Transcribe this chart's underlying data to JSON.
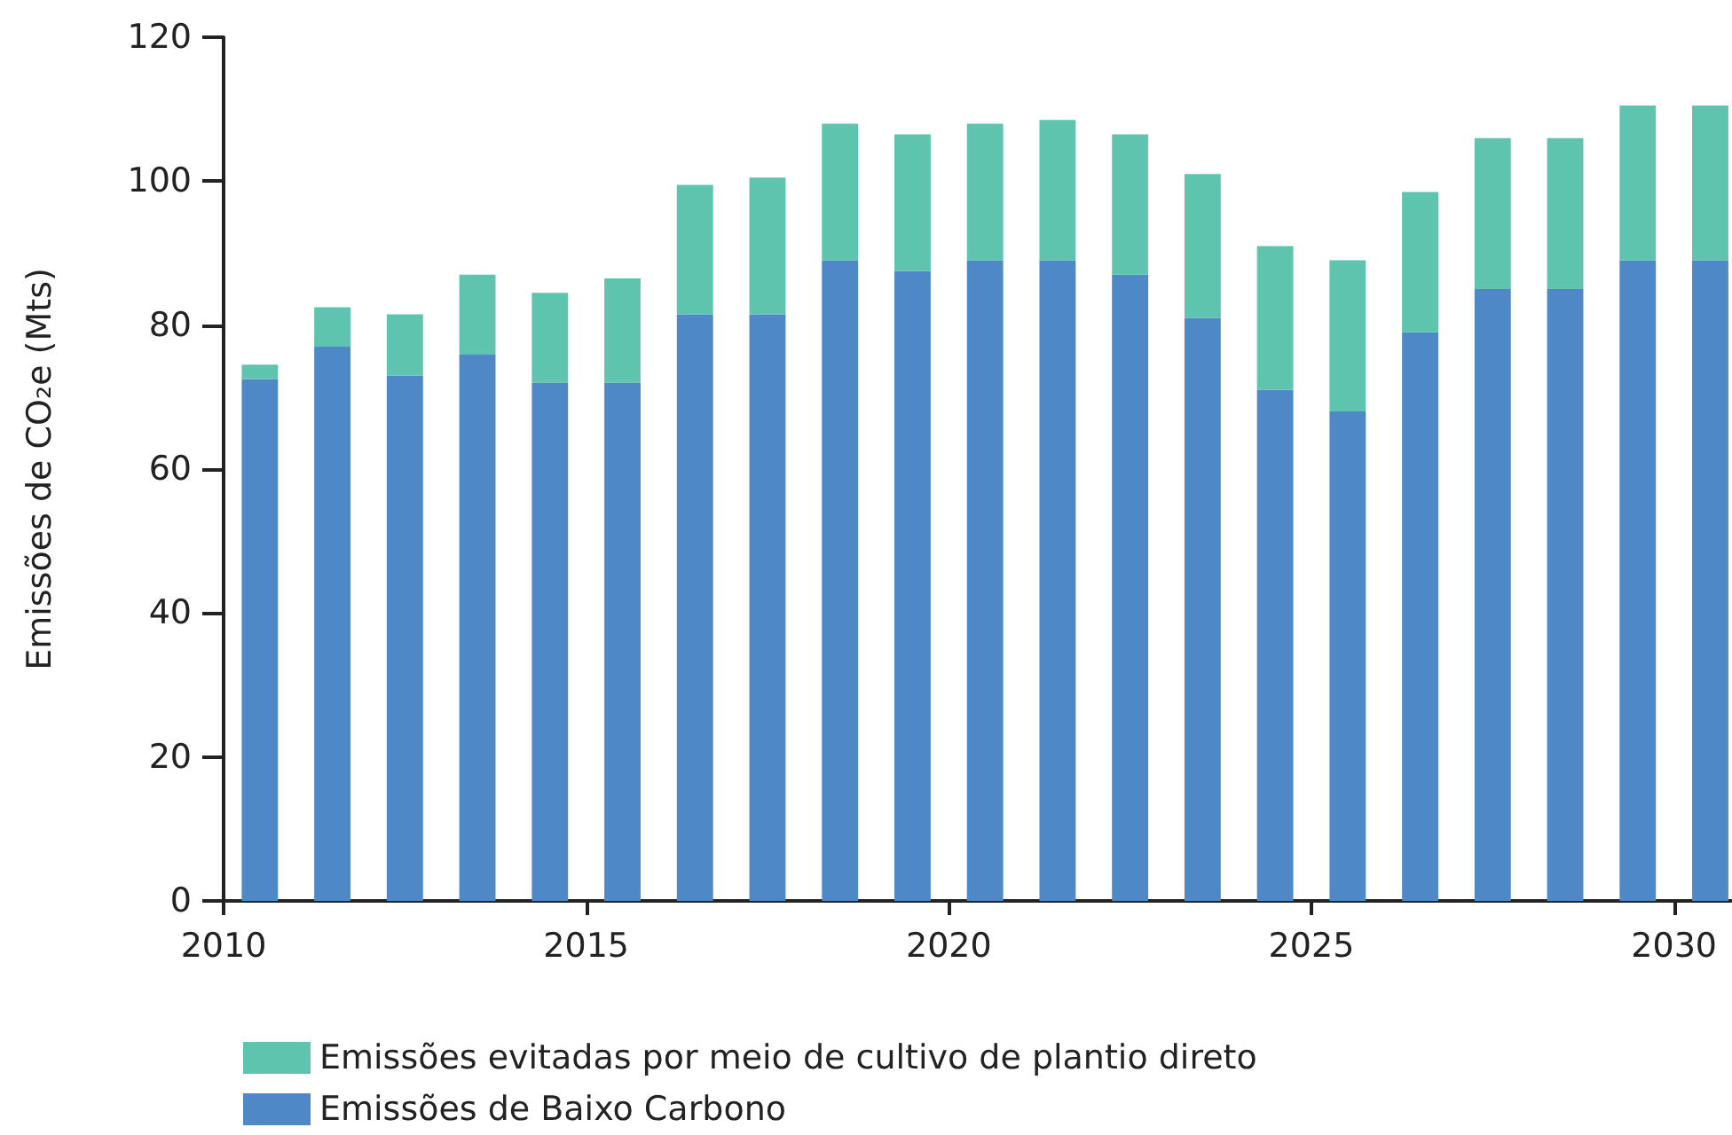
{
  "chart_data": {
    "type": "bar",
    "stacked": true,
    "ylabel": "Emissões de CO₂e (Mts)",
    "x": [
      2010.5,
      2011.5,
      2012.5,
      2013.5,
      2014.5,
      2015.5,
      2016.5,
      2017.5,
      2018.5,
      2019.5,
      2020.5,
      2021.5,
      2022.5,
      2023.5,
      2024.5,
      2025.5,
      2026.5,
      2027.5,
      2028.5,
      2029.5,
      2030.5
    ],
    "series": [
      {
        "name": "Emissões de Baixo Carbono",
        "color": "#4f88c6",
        "values": [
          72.5,
          77,
          73,
          76,
          72,
          72,
          81.5,
          81.5,
          89,
          87.5,
          89,
          89,
          87,
          81,
          71,
          68,
          79,
          85,
          85,
          89,
          89
        ]
      },
      {
        "name": "Emissões evitadas por meio de cultivo de plantio direto",
        "color": "#5ec4ae",
        "values": [
          2,
          5.5,
          8.5,
          11,
          12.5,
          14.5,
          18,
          19,
          19,
          19,
          19,
          19.5,
          19.5,
          20,
          20,
          21,
          19.5,
          21,
          21,
          21.5,
          21.5
        ]
      }
    ],
    "xlim": [
      2010,
      2030.8
    ],
    "xticks": [
      2010,
      2015,
      2020,
      2025,
      2030
    ],
    "ylim": [
      0,
      120
    ],
    "yticks": [
      0,
      20,
      40,
      60,
      80,
      100,
      120
    ],
    "grid": false,
    "legend": "bottom left"
  }
}
